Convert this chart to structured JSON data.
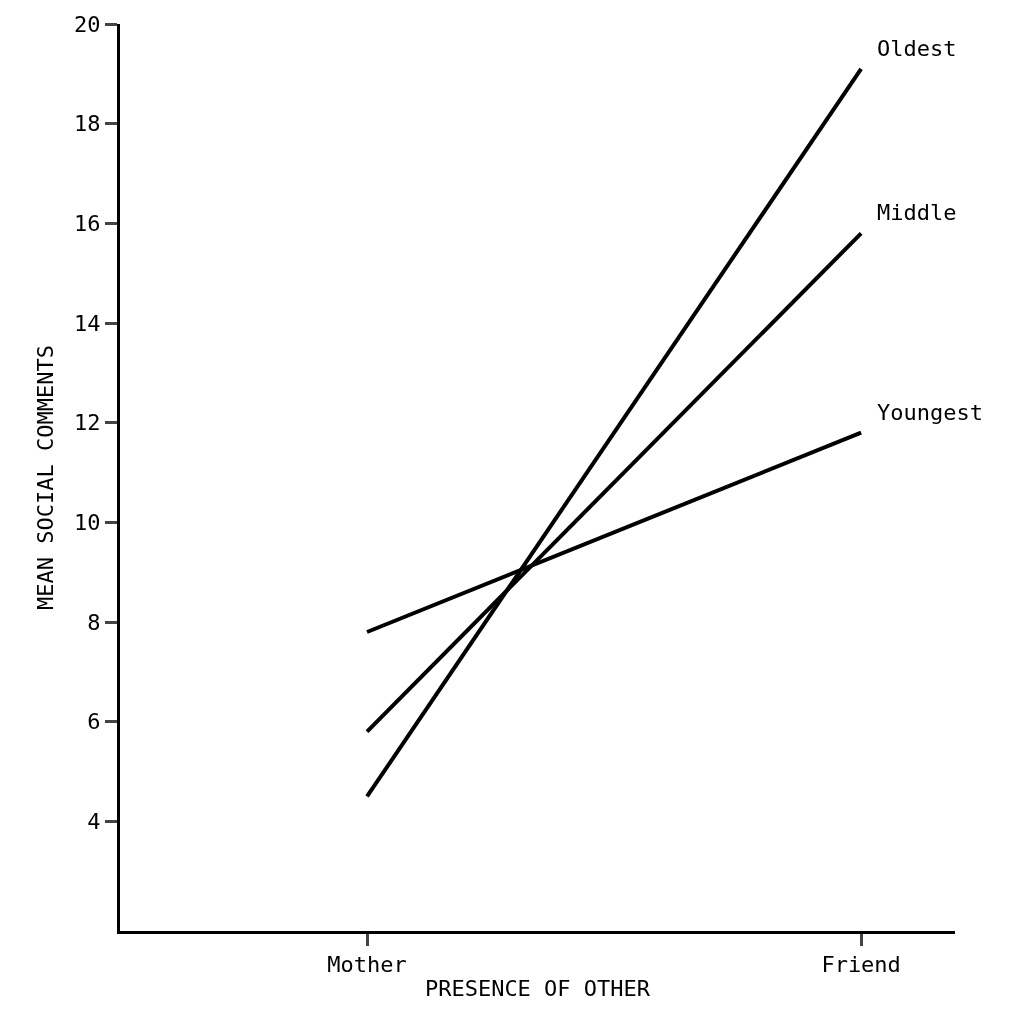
{
  "chart_data": {
    "type": "line",
    "xlabel": "PRESENCE OF OTHER",
    "ylabel": "MEAN SOCIAL COMMENTS",
    "categories": [
      "Mother",
      "Friend"
    ],
    "series": [
      {
        "name": "Oldest",
        "color": "#000000",
        "values": [
          4.5,
          19.1
        ]
      },
      {
        "name": "Middle",
        "color": "#000000",
        "values": [
          5.8,
          15.8
        ]
      },
      {
        "name": "Youngest",
        "color": "#000000",
        "values": [
          7.8,
          11.8
        ]
      }
    ],
    "ylim": [
      1.8,
      20
    ],
    "yticks": [
      4,
      6,
      8,
      10,
      12,
      14,
      16,
      18,
      20
    ],
    "legend": false,
    "marker": "none",
    "line_style": "solid"
  }
}
